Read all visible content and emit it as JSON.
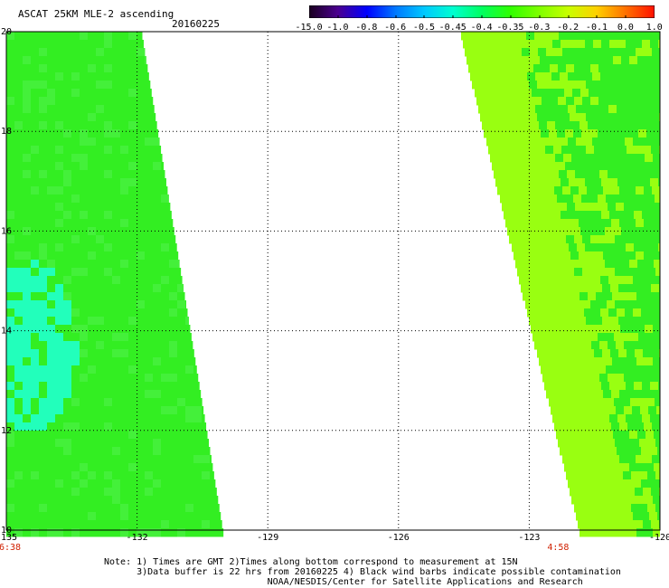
{
  "header": {
    "title": "ASCAT 25KM MLE-2 ascending",
    "date": "20160225"
  },
  "colorbar": {
    "tick_labels": [
      "-15.0",
      "-1.0",
      "-0.8",
      "-0.6",
      "-0.5",
      "-0.45",
      "-0.4",
      "-0.35",
      "-0.3",
      "-0.2",
      "-0.1",
      "0.0",
      "1.0"
    ],
    "colors": [
      "#1a0020",
      "#4b0090",
      "#0000ff",
      "#0078ff",
      "#00c8ff",
      "#00ffd0",
      "#00ff60",
      "#30ff00",
      "#80ff00",
      "#c8ff00",
      "#ffd000",
      "#ff7000",
      "#ff1000"
    ]
  },
  "map": {
    "lon_labels": [
      "-135",
      "-132",
      "-129",
      "-126",
      "-123",
      "-120"
    ],
    "lat_labels": [
      "20",
      "18",
      "16",
      "14",
      "12",
      "10"
    ],
    "time_labels": {
      "left": "6:38",
      "right": "4:58"
    },
    "swath_colors": {
      "green": "#33ee22",
      "yellow_green": "#99ff11",
      "cyan": "#22ffbb"
    }
  },
  "notes": [
    "Note: 1) Times are GMT 2)Times along bottom correspond to measurement at 15N",
    "      3)Data buffer is 22 hrs from 20160225 4) Black wind barbs indicate possible contamination",
    "                              NOAA/NESDIS/Center for Satellite Applications and Research"
  ]
}
